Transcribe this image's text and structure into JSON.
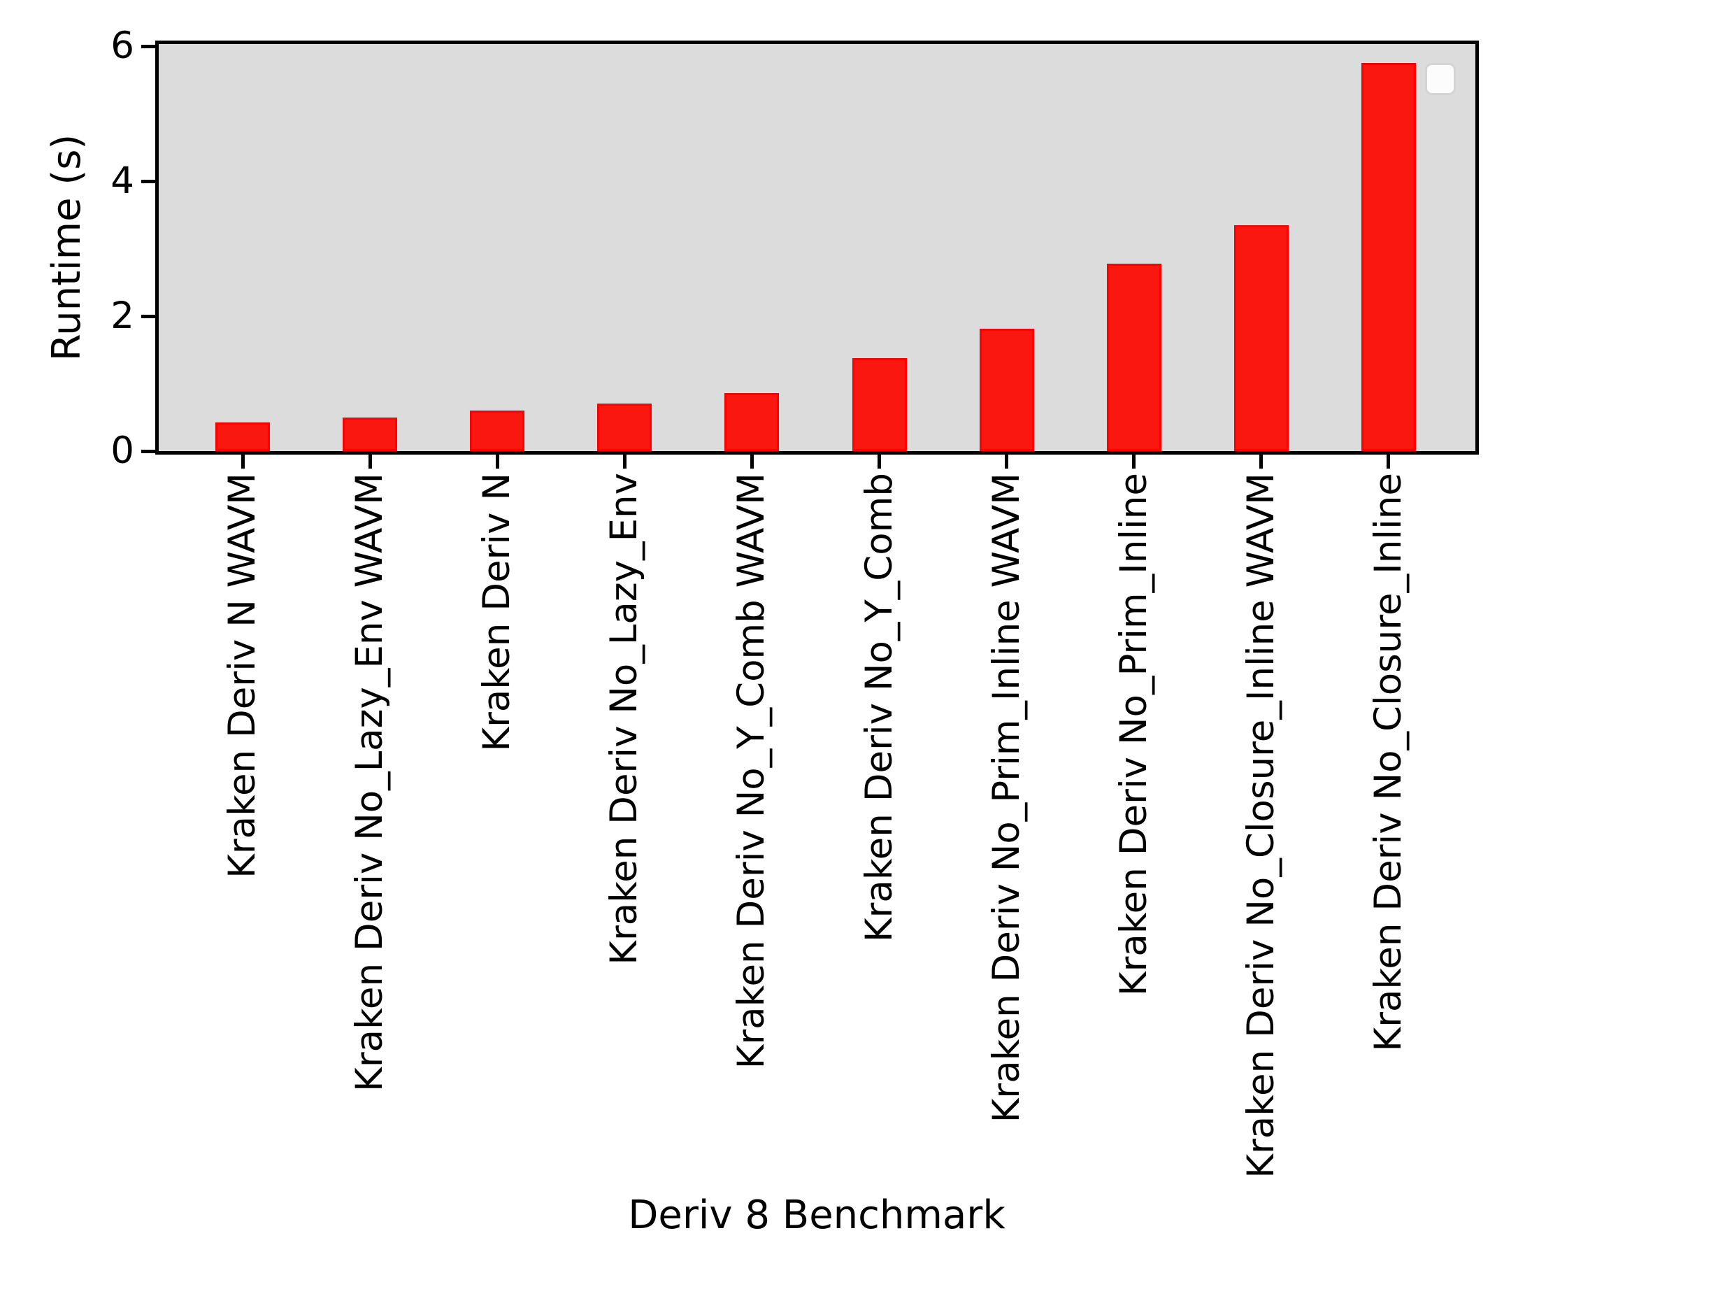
{
  "figure": {
    "background_color": "#ffffff",
    "plot_background_color": "#dcdcdc",
    "spine_color": "#000000"
  },
  "chart_data": {
    "type": "bar",
    "title": "",
    "xlabel": "Deriv 8 Benchmark",
    "ylabel": "Runtime (s)",
    "categories": [
      "Kraken Deriv N WAVM",
      "Kraken Deriv No_Lazy_Env WAVM",
      "Kraken Deriv N",
      "Kraken Deriv No_Lazy_Env",
      "Kraken Deriv No_Y_Comb WAVM",
      "Kraken Deriv No_Y_Comb",
      "Kraken Deriv No_Prim_Inline WAVM",
      "Kraken Deriv No_Prim_Inline",
      "Kraken Deriv No_Closure_Inline WAVM",
      "Kraken Deriv No_Closure_Inline"
    ],
    "values": [
      0.43,
      0.5,
      0.6,
      0.7,
      0.86,
      1.38,
      1.81,
      2.78,
      3.35,
      5.75
    ],
    "yticks": [
      "0",
      "2",
      "4",
      "6"
    ],
    "ytick_values": [
      0,
      2,
      4,
      6
    ],
    "ylim": [
      0,
      6
    ],
    "grid": false,
    "bar_color": "#f9170f",
    "bar_edge_color": "#ff0000",
    "legend": {
      "visible": true,
      "position": "upper right",
      "entries": []
    }
  }
}
